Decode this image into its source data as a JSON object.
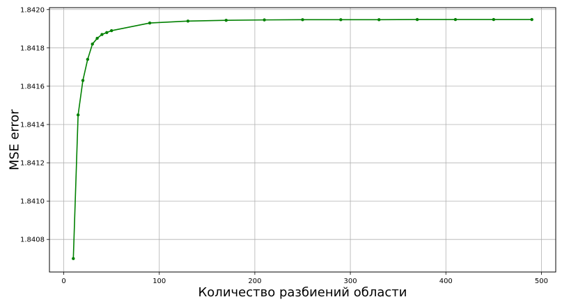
{
  "chart_data": {
    "type": "line",
    "title": "",
    "xlabel": "Количество разбиений области",
    "ylabel": "MSE error",
    "xlim": [
      -15,
      515
    ],
    "ylim": [
      1.84063,
      1.84201
    ],
    "xticks": [
      0,
      100,
      200,
      300,
      400,
      500
    ],
    "xtick_labels": [
      "0",
      "100",
      "200",
      "300",
      "400",
      "500"
    ],
    "yticks": [
      1.8408,
      1.841,
      1.8412,
      1.8414,
      1.8416,
      1.8418,
      1.842
    ],
    "ytick_labels": [
      "1.8408",
      "1.8410",
      "1.8412",
      "1.8414",
      "1.8416",
      "1.8418",
      "1.8420"
    ],
    "grid": true,
    "series": [
      {
        "color": "#008000",
        "marker": "circle",
        "x": [
          10,
          15,
          20,
          25,
          30,
          35,
          40,
          45,
          50,
          90,
          130,
          170,
          210,
          250,
          290,
          330,
          370,
          410,
          450,
          490
        ],
        "y": [
          1.8407,
          1.84145,
          1.84163,
          1.84174,
          1.84182,
          1.84185,
          1.84187,
          1.84188,
          1.84189,
          1.84193,
          1.84194,
          1.841944,
          1.841946,
          1.841947,
          1.841947,
          1.841947,
          1.841948,
          1.841948,
          1.841948,
          1.841948
        ]
      }
    ]
  }
}
